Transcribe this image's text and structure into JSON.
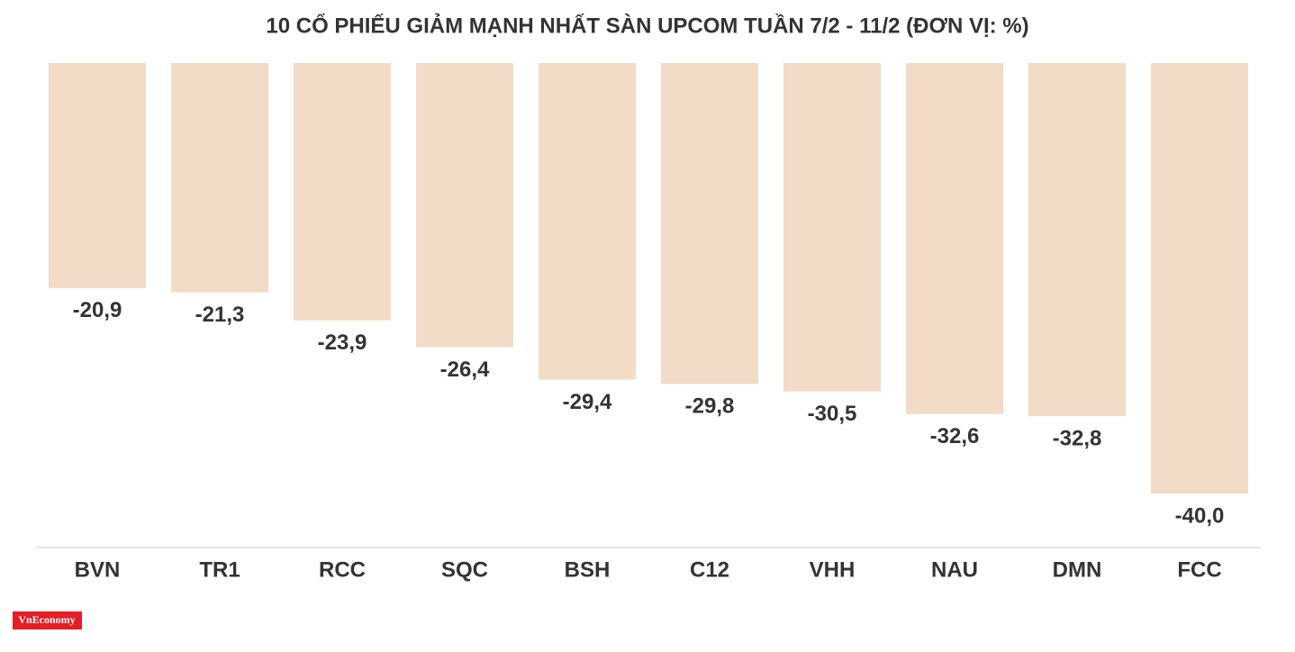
{
  "chart_data": {
    "type": "bar",
    "title": "10 CỔ PHIẾU GIẢM MẠNH NHẤT SÀN UPCOM TUẦN 7/2 - 11/2 (ĐƠN VỊ: %)",
    "categories": [
      "BVN",
      "TR1",
      "RCC",
      "SQC",
      "BSH",
      "C12",
      "VHH",
      "NAU",
      "DMN",
      "FCC"
    ],
    "values": [
      -20.9,
      -21.3,
      -23.9,
      -26.4,
      -29.4,
      -29.8,
      -30.5,
      -32.6,
      -32.8,
      -40.0
    ],
    "value_labels": [
      "-20,9",
      "-21,3",
      "-23,9",
      "-26,4",
      "-29,4",
      "-29,8",
      "-30,5",
      "-32,6",
      "-32,8",
      "-40,0"
    ],
    "color": "#f2dcc8",
    "ylim": [
      -45,
      0
    ],
    "watermark": "VnEconomy"
  }
}
